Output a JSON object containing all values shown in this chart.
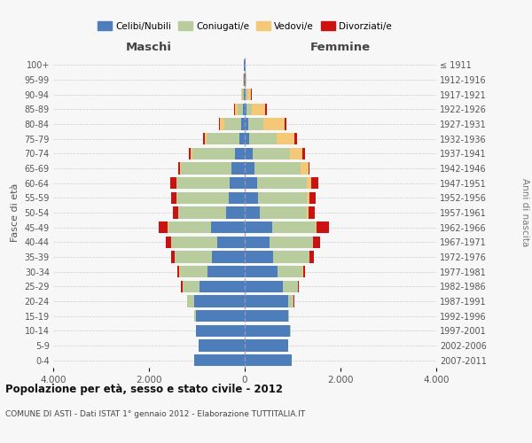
{
  "age_groups": [
    "0-4",
    "5-9",
    "10-14",
    "15-19",
    "20-24",
    "25-29",
    "30-34",
    "35-39",
    "40-44",
    "45-49",
    "50-54",
    "55-59",
    "60-64",
    "65-69",
    "70-74",
    "75-79",
    "80-84",
    "85-89",
    "90-94",
    "95-99",
    "100+"
  ],
  "birth_years": [
    "2007-2011",
    "2002-2006",
    "1997-2001",
    "1992-1996",
    "1987-1991",
    "1982-1986",
    "1977-1981",
    "1972-1976",
    "1967-1971",
    "1962-1966",
    "1957-1961",
    "1952-1956",
    "1947-1951",
    "1942-1946",
    "1937-1941",
    "1932-1936",
    "1927-1931",
    "1922-1926",
    "1917-1921",
    "1912-1916",
    "≤ 1911"
  ],
  "maschi": {
    "celibi": [
      1050,
      960,
      1020,
      1020,
      1050,
      950,
      780,
      680,
      580,
      700,
      380,
      340,
      320,
      280,
      200,
      110,
      80,
      35,
      20,
      15,
      10
    ],
    "coniugati": [
      0,
      0,
      5,
      40,
      150,
      350,
      580,
      780,
      950,
      900,
      1000,
      1080,
      1100,
      1050,
      900,
      680,
      350,
      120,
      30,
      10,
      5
    ],
    "vedovi": [
      0,
      0,
      0,
      0,
      5,
      5,
      5,
      5,
      5,
      5,
      5,
      5,
      10,
      20,
      30,
      50,
      80,
      40,
      15,
      5,
      2
    ],
    "divorziati": [
      0,
      0,
      0,
      0,
      5,
      20,
      50,
      80,
      120,
      200,
      120,
      110,
      130,
      40,
      30,
      30,
      30,
      20,
      5,
      0,
      0
    ]
  },
  "femmine": {
    "nubili": [
      980,
      900,
      950,
      900,
      900,
      800,
      680,
      600,
      520,
      580,
      320,
      280,
      260,
      210,
      160,
      100,
      80,
      40,
      20,
      15,
      10
    ],
    "coniugate": [
      0,
      0,
      5,
      20,
      120,
      310,
      530,
      750,
      900,
      900,
      980,
      1020,
      1030,
      960,
      780,
      560,
      300,
      110,
      30,
      10,
      3
    ],
    "vedove": [
      0,
      0,
      0,
      0,
      5,
      5,
      5,
      5,
      10,
      20,
      40,
      60,
      90,
      160,
      270,
      380,
      450,
      280,
      80,
      20,
      3
    ],
    "divorziate": [
      0,
      0,
      0,
      0,
      5,
      20,
      50,
      90,
      150,
      260,
      130,
      120,
      150,
      30,
      40,
      50,
      40,
      30,
      10,
      0,
      0
    ]
  },
  "colors": {
    "celibi_nubili": "#4d7dba",
    "coniugati": "#b8cc9e",
    "vedovi": "#f5c878",
    "divorziati": "#cc1111"
  },
  "title": "Popolazione per età, sesso e stato civile - 2012",
  "subtitle": "COMUNE DI ASTI - Dati ISTAT 1° gennaio 2012 - Elaborazione TUTTITALIA.IT",
  "xlabel_left": "Maschi",
  "xlabel_right": "Femmine",
  "ylabel_left": "Fasce di età",
  "ylabel_right": "Anni di nascita",
  "xlim": 4000,
  "background_color": "#f7f7f7",
  "legend_labels": [
    "Celibi/Nubili",
    "Coniugati/e",
    "Vedovi/e",
    "Divorziati/e"
  ]
}
